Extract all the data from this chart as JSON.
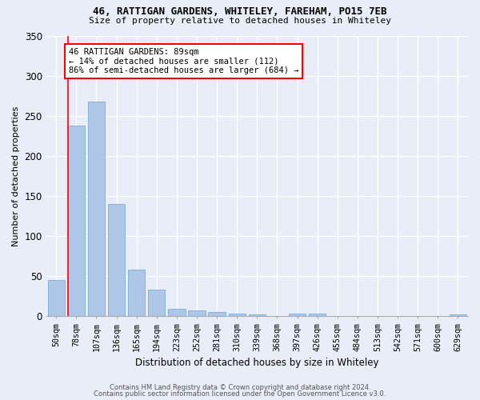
{
  "title1": "46, RATTIGAN GARDENS, WHITELEY, FAREHAM, PO15 7EB",
  "title2": "Size of property relative to detached houses in Whiteley",
  "xlabel": "Distribution of detached houses by size in Whiteley",
  "ylabel": "Number of detached properties",
  "categories": [
    "50sqm",
    "78sqm",
    "107sqm",
    "136sqm",
    "165sqm",
    "194sqm",
    "223sqm",
    "252sqm",
    "281sqm",
    "310sqm",
    "339sqm",
    "368sqm",
    "397sqm",
    "426sqm",
    "455sqm",
    "484sqm",
    "513sqm",
    "542sqm",
    "571sqm",
    "600sqm",
    "629sqm"
  ],
  "values": [
    45,
    238,
    268,
    140,
    58,
    33,
    9,
    7,
    5,
    3,
    2,
    0,
    3,
    3,
    0,
    0,
    0,
    0,
    0,
    0,
    2
  ],
  "bar_color": "#aec6e8",
  "bar_edge_color": "#7aafd4",
  "annotation_box_text": "46 RATTIGAN GARDENS: 89sqm\n← 14% of detached houses are smaller (112)\n86% of semi-detached houses are larger (684) →",
  "background_color": "#e8edf8",
  "grid_color": "#ffffff",
  "footer1": "Contains HM Land Registry data © Crown copyright and database right 2024.",
  "footer2": "Contains public sector information licensed under the Open Government Licence v3.0.",
  "ylim": [
    0,
    350
  ],
  "yticks": [
    0,
    50,
    100,
    150,
    200,
    250,
    300,
    350
  ]
}
